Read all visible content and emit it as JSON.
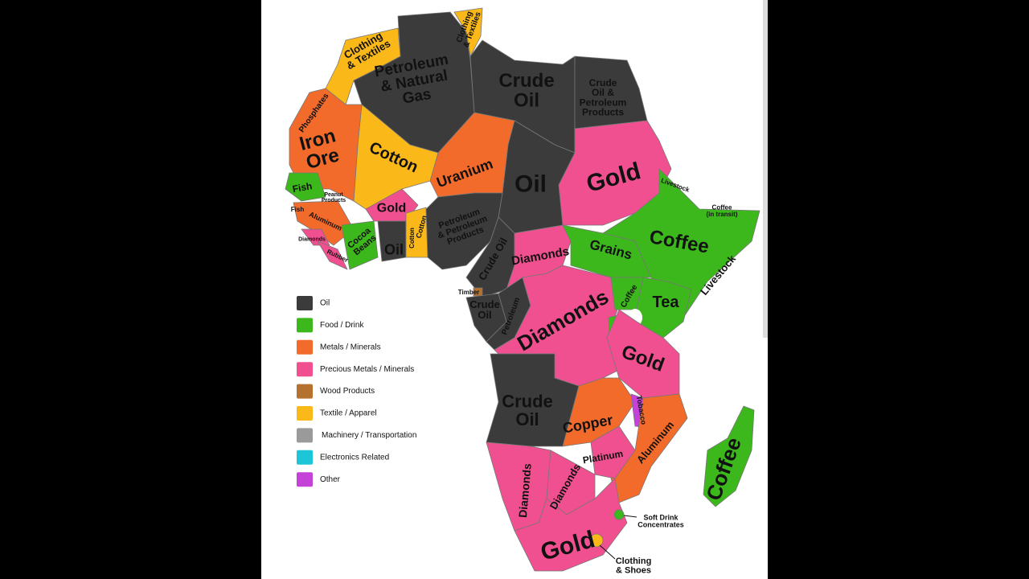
{
  "regions": [
    {
      "lines": [
        "Clothing",
        "& Textiles"
      ]
    },
    {
      "lines": [
        "Clothing",
        "& Textiles"
      ]
    },
    {
      "lines": [
        "Petroleum",
        "& Natural",
        "Gas"
      ]
    },
    {
      "lines": [
        "Crude",
        "Oil"
      ]
    },
    {
      "lines": [
        "Crude",
        "Oil &",
        "Petroleum",
        "Products"
      ]
    },
    {
      "lines": [
        "Phosphates"
      ]
    },
    {
      "lines": [
        "Iron",
        "Ore"
      ]
    },
    {
      "lines": [
        "Cotton"
      ]
    },
    {
      "lines": [
        "Uranium"
      ]
    },
    {
      "lines": [
        "Oil"
      ]
    },
    {
      "lines": [
        "Gold"
      ]
    },
    {
      "lines": [
        "Livestock"
      ]
    },
    {
      "lines": [
        "Coffee",
        "(in transit)"
      ]
    },
    {
      "lines": [
        "Fish"
      ]
    },
    {
      "lines": [
        "Peanut",
        "Products"
      ]
    },
    {
      "lines": [
        "Fish"
      ]
    },
    {
      "lines": [
        "Aluminum"
      ]
    },
    {
      "lines": [
        "Diamonds"
      ]
    },
    {
      "lines": [
        "Rubber"
      ]
    },
    {
      "lines": [
        "Cocoa",
        "Beans"
      ]
    },
    {
      "lines": [
        "Gold"
      ]
    },
    {
      "lines": [
        "Oil"
      ]
    },
    {
      "lines": [
        "Cotton"
      ]
    },
    {
      "lines": [
        "Cotton"
      ]
    },
    {
      "lines": [
        "Petroleum",
        "& Petroleum",
        "Products"
      ]
    },
    {
      "lines": [
        "Crude Oil"
      ]
    },
    {
      "lines": [
        "Diamonds"
      ]
    },
    {
      "lines": [
        "Grains"
      ]
    },
    {
      "lines": [
        "Coffee"
      ]
    },
    {
      "lines": [
        "Livestock"
      ]
    },
    {
      "lines": [
        "Timber"
      ]
    },
    {
      "lines": [
        "Crude",
        "Oil"
      ]
    },
    {
      "lines": [
        "Petroleum"
      ]
    },
    {
      "lines": [
        "Diamonds"
      ]
    },
    {
      "lines": [
        "Coffee"
      ]
    },
    {
      "lines": [
        "Tea"
      ]
    },
    {
      "lines": [
        "Gold"
      ]
    },
    {
      "lines": [
        "Crude",
        "Oil"
      ]
    },
    {
      "lines": [
        "Copper"
      ]
    },
    {
      "lines": [
        "Tobacco"
      ]
    },
    {
      "lines": [
        "Platinum"
      ]
    },
    {
      "lines": [
        "Aluminum"
      ]
    },
    {
      "lines": [
        "Diamonds"
      ]
    },
    {
      "lines": [
        "Diamonds"
      ]
    },
    {
      "lines": [
        "Gold"
      ]
    },
    {
      "lines": [
        "Soft Drink",
        "Concentrates"
      ]
    },
    {
      "lines": [
        "Clothing",
        "& Shoes"
      ]
    },
    {
      "lines": [
        "Coffee"
      ]
    }
  ],
  "legend": {
    "items": [
      {
        "label": "Oil",
        "color": "#3b3b3b"
      },
      {
        "label": "Food / Drink",
        "color": "#3cb81c"
      },
      {
        "label": "Metals / Minerals",
        "color": "#f26b2b"
      },
      {
        "label": "Precious Metals / Minerals",
        "color": "#f0508f"
      },
      {
        "label": "Wood Products",
        "color": "#b5722f"
      },
      {
        "label": "Textile / Apparel",
        "color": "#fbb819"
      },
      {
        "label": "Machinery / Transportation",
        "color": "#9a9a9a"
      },
      {
        "label": "Electronics Related",
        "color": "#1cc6d8"
      },
      {
        "label": "Other",
        "color": "#c542d8"
      }
    ]
  }
}
